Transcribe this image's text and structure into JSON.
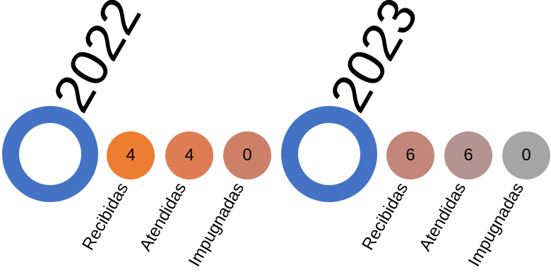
{
  "groups": [
    {
      "year": "2022",
      "ring_color": "#4472c4",
      "items": [
        {
          "label": "Recibidas",
          "value": "4",
          "color": "#ed7d31"
        },
        {
          "label": "Atendidas",
          "value": "4",
          "color": "#de7d55"
        },
        {
          "label": "Impugnadas",
          "value": "0",
          "color": "#cd7f67"
        }
      ]
    },
    {
      "year": "2023",
      "ring_color": "#4472c4",
      "items": [
        {
          "label": "Recibidas",
          "value": "6",
          "color": "#c48679"
        },
        {
          "label": "Atendidas",
          "value": "6",
          "color": "#b59390"
        },
        {
          "label": "Impugnadas",
          "value": "0",
          "color": "#a5a5a5"
        }
      ]
    }
  ]
}
